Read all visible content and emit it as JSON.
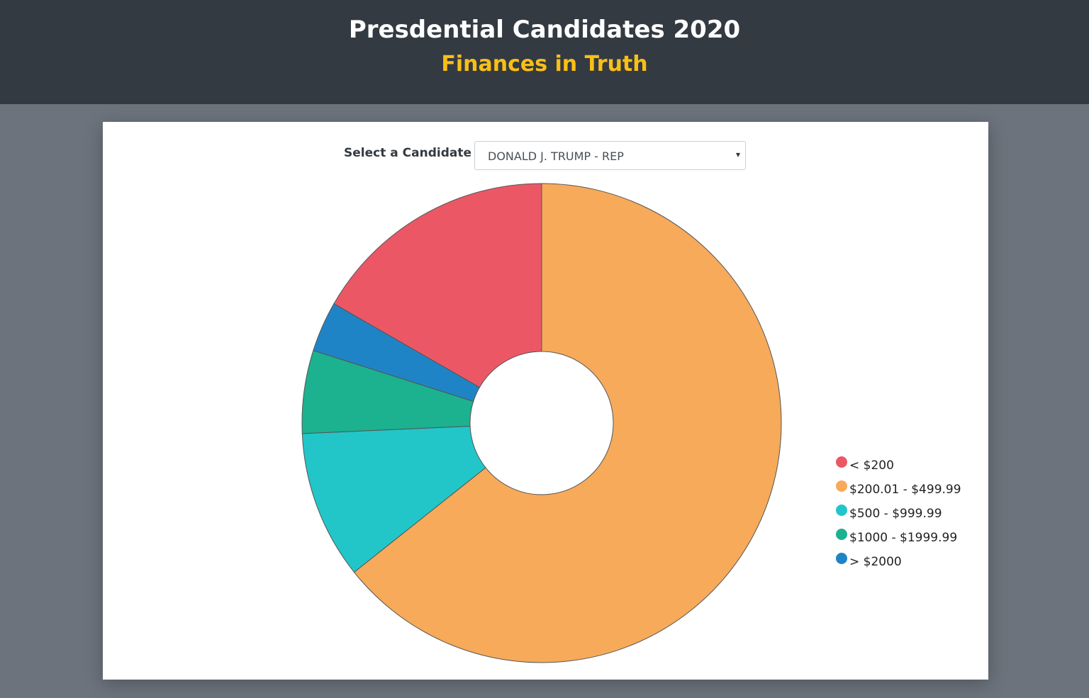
{
  "header": {
    "title": "Presdential Candidates 2020",
    "subtitle": "Finances in Truth"
  },
  "selector": {
    "label": "Select a Candidate",
    "selected": "DONALD J. TRUMP - REP",
    "caret": "▾"
  },
  "colors": {
    "header_bg": "#343a42",
    "subtitle": "#f9bf16",
    "page_bg": "#6c737c"
  },
  "chart_data": {
    "type": "pie",
    "donut": true,
    "categories": [
      "< $200",
      "$200.01 - $499.99",
      "$500 - $999.99",
      "$1000 - $1999.99",
      "> $2000"
    ],
    "values": [
      16.7,
      64.3,
      10.0,
      5.6,
      3.4
    ],
    "colors": [
      "#ec5766",
      "#f7aa5a",
      "#22c6c9",
      "#1cb18f",
      "#1f84c6"
    ],
    "legend_position": "right"
  }
}
